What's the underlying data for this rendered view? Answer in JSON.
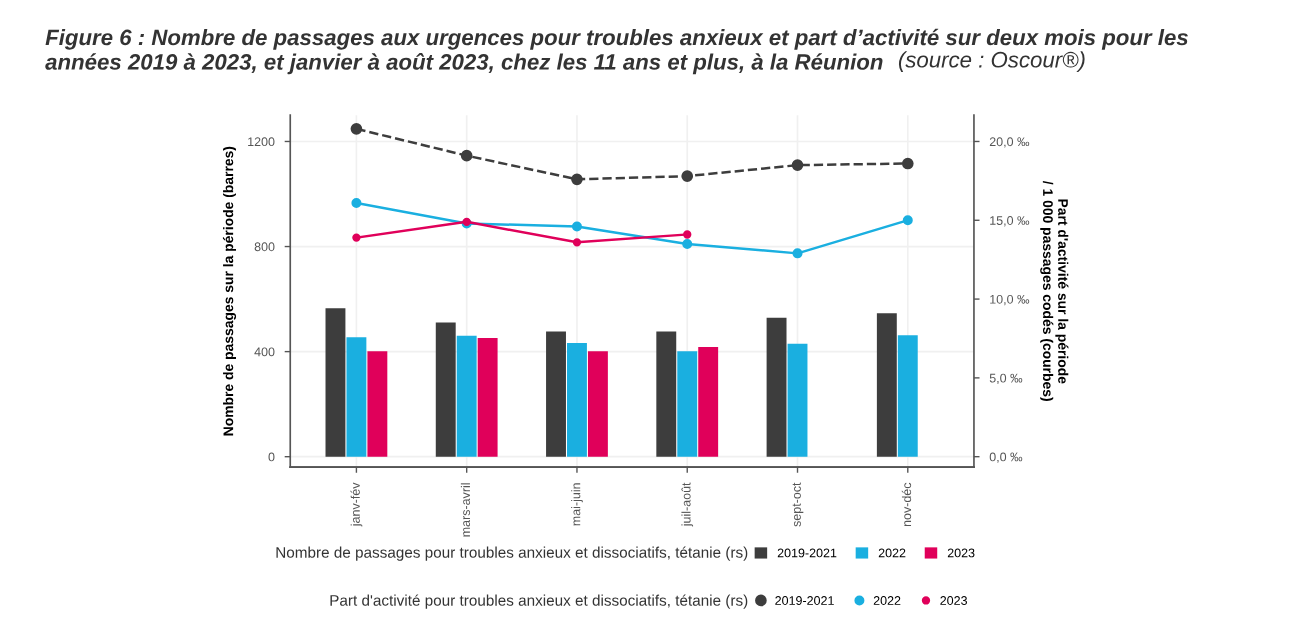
{
  "chart_data": {
    "type": "bar",
    "title": "Figure 6 : Nombre de passages aux urgences pour troubles anxieux et part d’activité sur deux mois pour les\nannées 2019 à 2023, et janvier à août 2023, chez les 11 ans et plus, à la Réunion",
    "annotations": [
      "(source : Oscour®)"
    ],
    "categories": [
      "janv-fév",
      "mars-avril",
      "mai-juin",
      "juil-août",
      "sept-oct",
      "nov-déc"
    ],
    "ylabel": "Nombre de passages sur la période (barres)",
    "y2label": "Part d'activité sur la période\n/ 1 000 passages codés (courbes)",
    "legend_title": [
      "Nombre de passages pour troubles anxieux et dissociatifs, tétanie (rs)",
      "Part d'activité pour troubles anxieux et dissociatifs, tétanie (rs)"
    ],
    "series": [
      {
        "name": "2019-2021",
        "color": "#3d3d3d",
        "values": [
          565,
          511,
          477,
          477,
          529,
          546
        ]
      },
      {
        "name": "2022",
        "color": "#1aafe0",
        "values": [
          455,
          460,
          433,
          401,
          430,
          462
        ]
      },
      {
        "name": "2023",
        "color": "#e0005a",
        "values": [
          401,
          452,
          401,
          418,
          null,
          null
        ]
      },
      {
        "name": "2019-2021",
        "type": "line",
        "axis": "y2",
        "color": "#3d3d3d",
        "line_style": "dashed",
        "values": [
          20.8,
          19.1,
          17.6,
          17.8,
          18.5,
          18.6
        ]
      },
      {
        "name": "2022",
        "type": "line",
        "axis": "y2",
        "color": "#1aafe0",
        "line_style": "solid",
        "values": [
          16.1,
          14.8,
          14.6,
          13.5,
          12.9,
          15.0
        ]
      },
      {
        "name": "2023",
        "type": "line",
        "axis": "y2",
        "color": "#e0005a",
        "line_style": "solid",
        "values": [
          13.9,
          14.9,
          13.6,
          14.1,
          null,
          null
        ]
      }
    ],
    "ylim": [
      -40,
      1300
    ],
    "yticks": [
      0,
      400,
      800,
      1200
    ],
    "y2lim": [
      -0.667,
      21.667
    ],
    "y2ticks": [
      {
        "value": 0,
        "label": "0,0 ‰"
      },
      {
        "value": 5,
        "label": "5,0 ‰"
      },
      {
        "value": 10,
        "label": "10,0 ‰"
      },
      {
        "value": 15,
        "label": "15,0 ‰"
      },
      {
        "value": 20,
        "label": "20,0 ‰"
      }
    ],
    "grid": true,
    "legend": "bottom",
    "marker": "circle"
  }
}
